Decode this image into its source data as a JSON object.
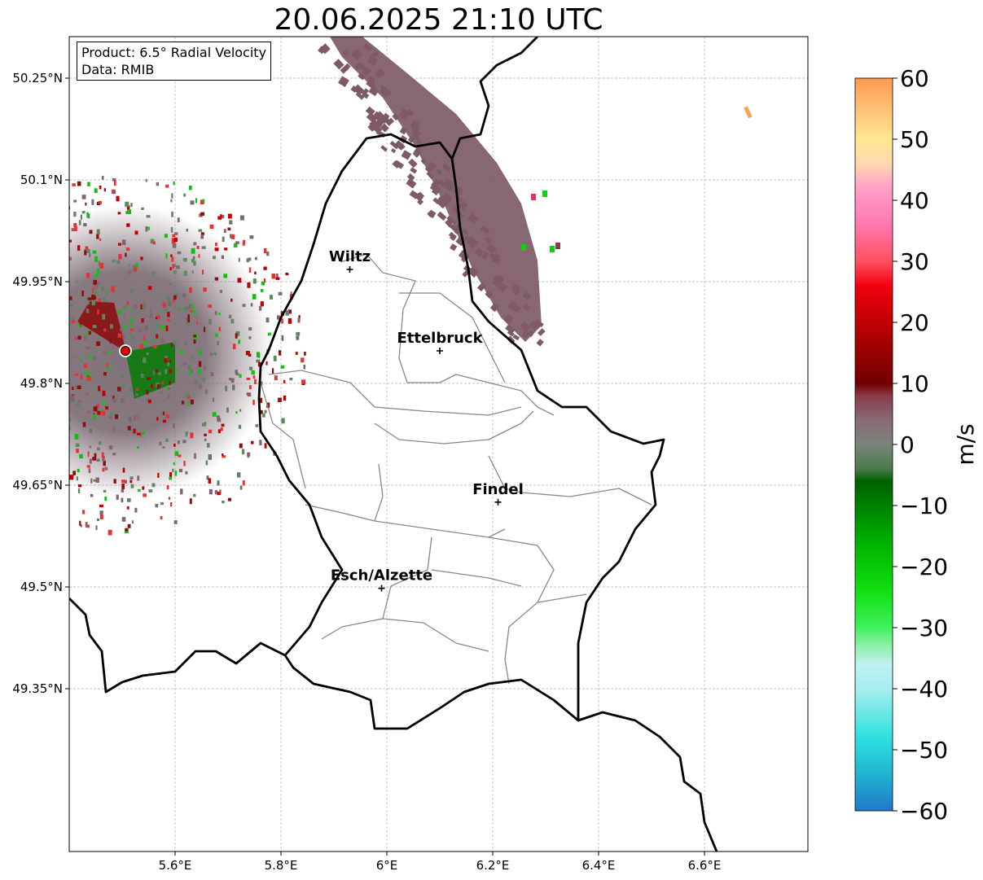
{
  "title": "20.06.2025 21:10 UTC",
  "info": {
    "product": "Product: 6.5° Radial Velocity",
    "data_source": "Data: RMIB"
  },
  "axes": {
    "lon_ticks": [
      "5.6°E",
      "5.8°E",
      "6°E",
      "6.2°E",
      "6.4°E",
      "6.6°E"
    ],
    "lat_ticks": [
      "50.25°N",
      "50.1°N",
      "49.95°N",
      "49.8°N",
      "49.65°N",
      "49.5°N",
      "49.35°N"
    ],
    "grid": true
  },
  "cities": [
    {
      "name": "Wiltz",
      "lon": 5.93,
      "lat": 49.968
    },
    {
      "name": "Ettelbruck",
      "lon": 6.1,
      "lat": 49.848
    },
    {
      "name": "Findel",
      "lon": 6.21,
      "lat": 49.625
    },
    {
      "name": "Esch/Alzette",
      "lon": 5.99,
      "lat": 49.498
    }
  ],
  "radar_site": {
    "icon": "radar-site-icon",
    "color": "#e00000"
  },
  "colorbar": {
    "label": "m/s",
    "vmin": -60,
    "vmax": 60,
    "ticks": [
      "60",
      "50",
      "40",
      "30",
      "20",
      "10",
      "0",
      "−10",
      "−20",
      "−30",
      "−40",
      "−50",
      "−60"
    ],
    "stops": [
      {
        "v": -60,
        "color": "#1f78c8"
      },
      {
        "v": -54,
        "color": "#22b4d0"
      },
      {
        "v": -48,
        "color": "#2fe0e0"
      },
      {
        "v": -40,
        "color": "#a8eef0"
      },
      {
        "v": -36,
        "color": "#c0f2f0"
      },
      {
        "v": -33,
        "color": "#8ff0a8"
      },
      {
        "v": -30,
        "color": "#40f060"
      },
      {
        "v": -24,
        "color": "#10e010"
      },
      {
        "v": -16,
        "color": "#00b000"
      },
      {
        "v": -6,
        "color": "#006000"
      },
      {
        "v": -4,
        "color": "#4a7a4a"
      },
      {
        "v": 0,
        "color": "#7a857a"
      },
      {
        "v": 4,
        "color": "#8a6a78"
      },
      {
        "v": 8,
        "color": "#8a3a4a"
      },
      {
        "v": 10,
        "color": "#700000"
      },
      {
        "v": 18,
        "color": "#b00000"
      },
      {
        "v": 26,
        "color": "#f00010"
      },
      {
        "v": 30,
        "color": "#ff5060"
      },
      {
        "v": 36,
        "color": "#ff78b0"
      },
      {
        "v": 42,
        "color": "#ffa0c8"
      },
      {
        "v": 46,
        "color": "#ffd8b0"
      },
      {
        "v": 50,
        "color": "#ffe890"
      },
      {
        "v": 56,
        "color": "#ffb870"
      },
      {
        "v": 60,
        "color": "#ff9a50"
      }
    ]
  },
  "echo_colors": [
    "#5c8a5c",
    "#6a7a6a",
    "#8a6270",
    "#7a6670",
    "#8a1010",
    "#c00000",
    "#10c010",
    "#e83030"
  ]
}
